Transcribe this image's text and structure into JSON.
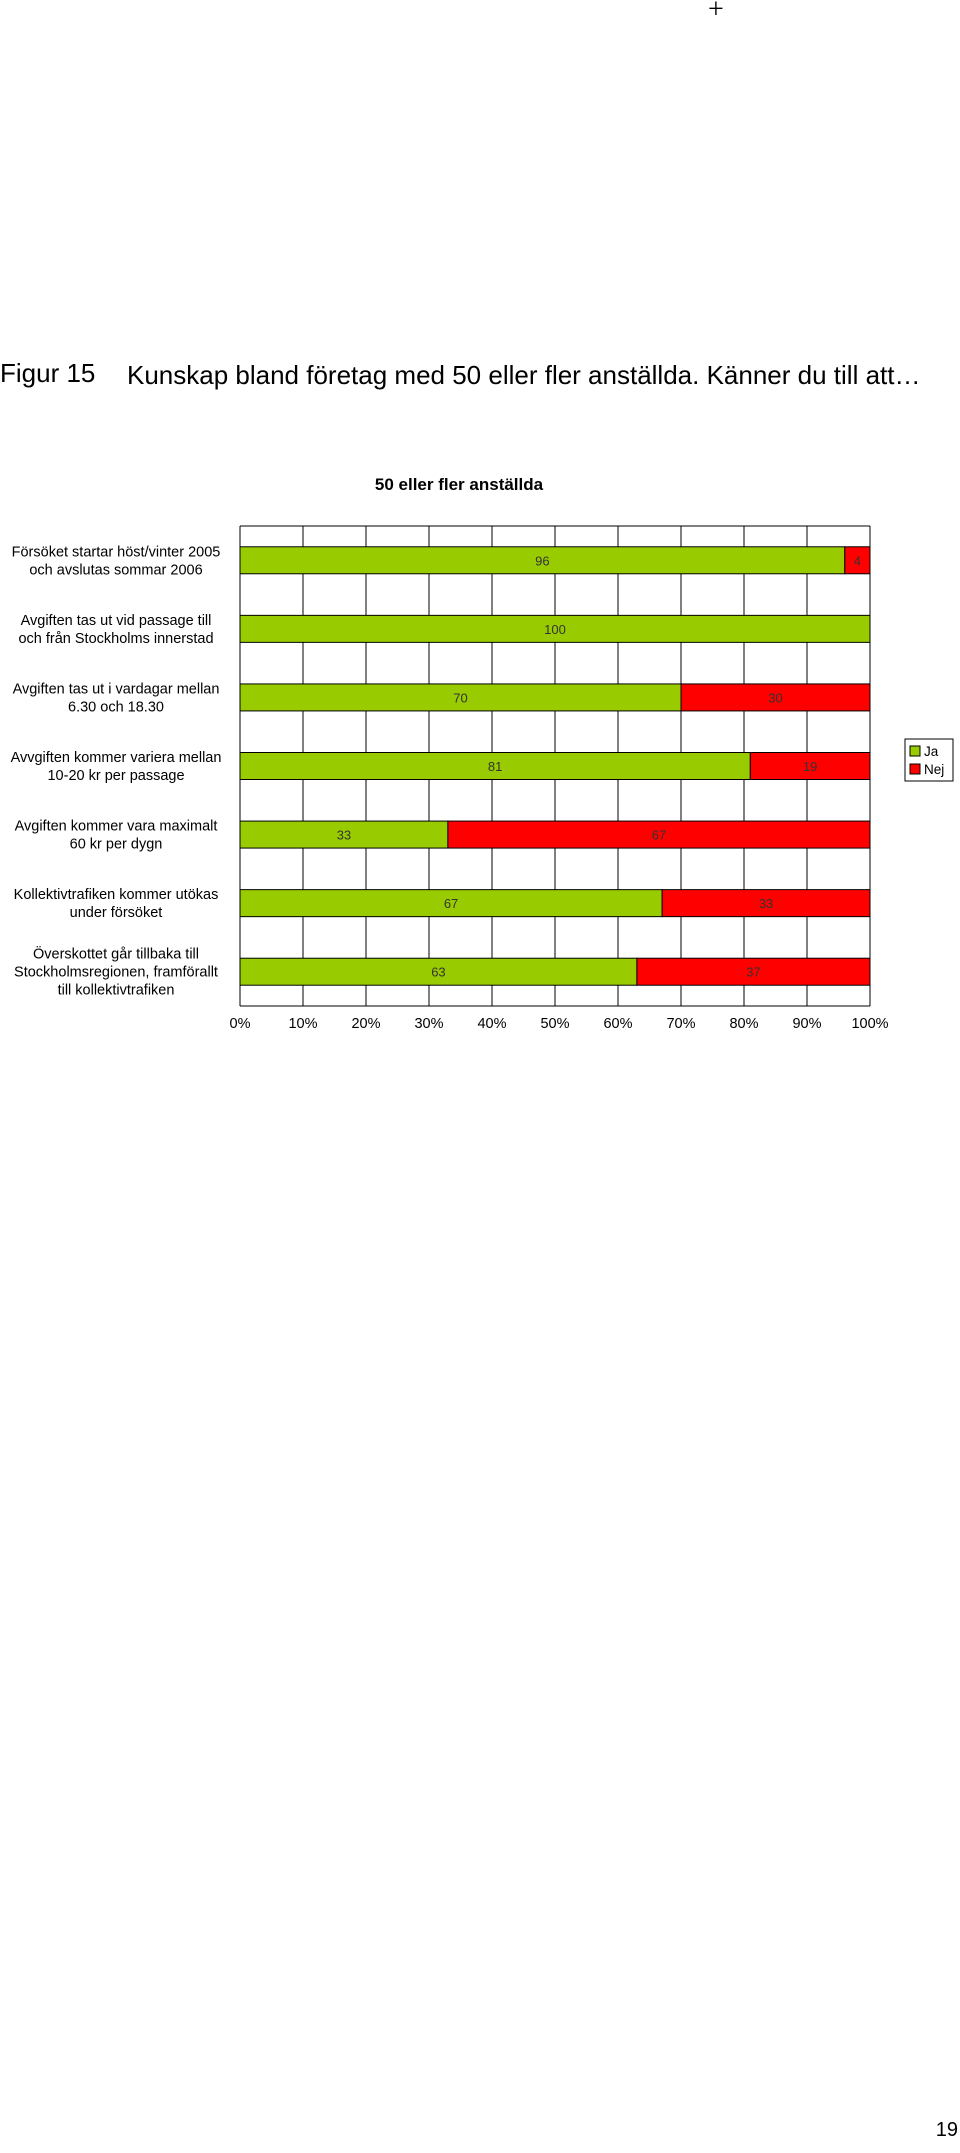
{
  "page": {
    "corner_mark": "+",
    "figure_label": "Figur 15",
    "figure_title": "Kunskap bland företag med 50 eller fler anställda. Känner du till att…",
    "page_number": "19"
  },
  "colors": {
    "ja": "#99cc00",
    "nej": "#ff0000",
    "grid": "#000000"
  },
  "chart_data": {
    "type": "bar",
    "orientation": "horizontal",
    "stacked": true,
    "title": "50 eller fler anställda",
    "categories": [
      "Försöket startar höst/vinter 2005 och avslutas sommar 2006",
      "Avgiften tas ut vid passage till och från Stockholms innerstad",
      "Avgiften tas ut i vardagar mellan 6.30 och 18.30",
      "Avvgiften kommer variera mellan 10-20 kr per passage",
      "Avgiften kommer vara maximalt 60 kr per dygn",
      "Kollektivtrafiken kommer utökas under försöket",
      "Överskottet går tillbaka till Stockholmsregionen, framförallt till kollektivtrafiken"
    ],
    "category_lines": [
      [
        "Försöket startar höst/vinter 2005",
        "och avslutas sommar 2006"
      ],
      [
        "Avgiften tas ut vid passage till",
        "och från Stockholms innerstad"
      ],
      [
        "Avgiften tas ut i vardagar mellan",
        "6.30 och 18.30"
      ],
      [
        "Avvgiften kommer variera mellan",
        "10-20 kr per passage"
      ],
      [
        "Avgiften kommer vara maximalt",
        "60 kr per dygn"
      ],
      [
        "Kollektivtrafiken kommer utökas",
        "under försöket"
      ],
      [
        "Överskottet går tillbaka till",
        "Stockholmsregionen, framförallt",
        "till kollektivtrafiken"
      ]
    ],
    "series": [
      {
        "name": "Ja",
        "values": [
          96,
          100,
          70,
          81,
          33,
          67,
          63
        ]
      },
      {
        "name": "Nej",
        "values": [
          4,
          0,
          30,
          19,
          67,
          33,
          37
        ]
      }
    ],
    "x_ticks": [
      "0%",
      "10%",
      "20%",
      "30%",
      "40%",
      "50%",
      "60%",
      "70%",
      "80%",
      "90%",
      "100%"
    ],
    "xlim": [
      0,
      100
    ],
    "grid": true,
    "legend": "right"
  }
}
